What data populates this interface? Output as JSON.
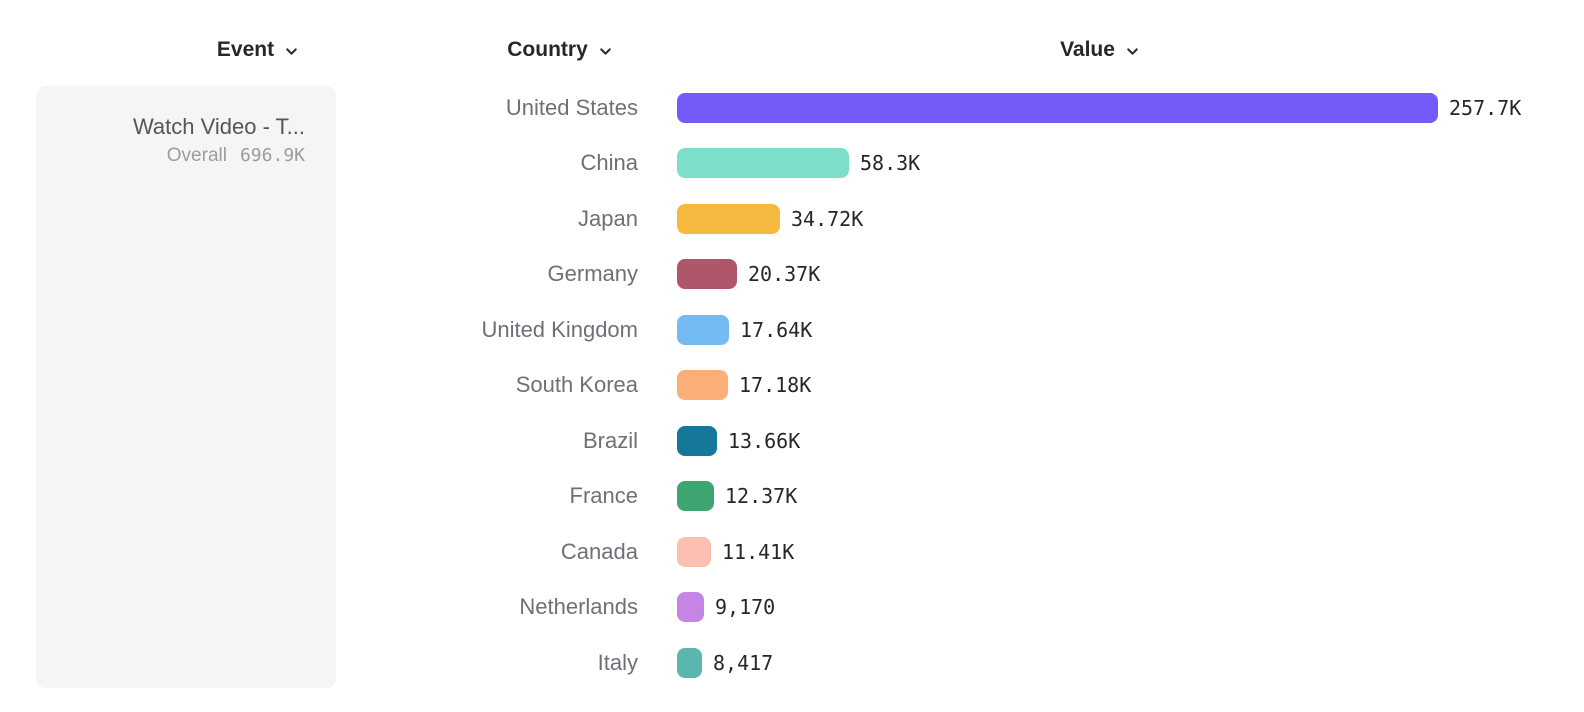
{
  "headers": {
    "event": "Event",
    "country": "Country",
    "value": "Value"
  },
  "event_card": {
    "title": "Watch Video - T...",
    "overall_label": "Overall",
    "overall_value": "696.9K"
  },
  "chart_data": {
    "type": "bar",
    "orientation": "horizontal",
    "title": "",
    "xlabel": "Value",
    "ylabel": "Country",
    "xlim": [
      0,
      257700
    ],
    "grid": false,
    "categories": [
      "United States",
      "China",
      "Japan",
      "Germany",
      "United Kingdom",
      "South Korea",
      "Brazil",
      "France",
      "Canada",
      "Netherlands",
      "Italy"
    ],
    "values": [
      257700,
      58300,
      34720,
      20370,
      17640,
      17180,
      13660,
      12370,
      11410,
      9170,
      8417
    ],
    "value_labels": [
      "257.7K",
      "58.3K",
      "34.72K",
      "20.37K",
      "17.64K",
      "17.18K",
      "13.66K",
      "12.37K",
      "11.41K",
      "9,170",
      "8,417"
    ],
    "colors": [
      "#755afa",
      "#7cdecb",
      "#f6b93f",
      "#b0566a",
      "#74bbf3",
      "#fbae78",
      "#15789b",
      "#3da56f",
      "#fcc0b1",
      "#c684e4",
      "#5bb6ad"
    ]
  }
}
